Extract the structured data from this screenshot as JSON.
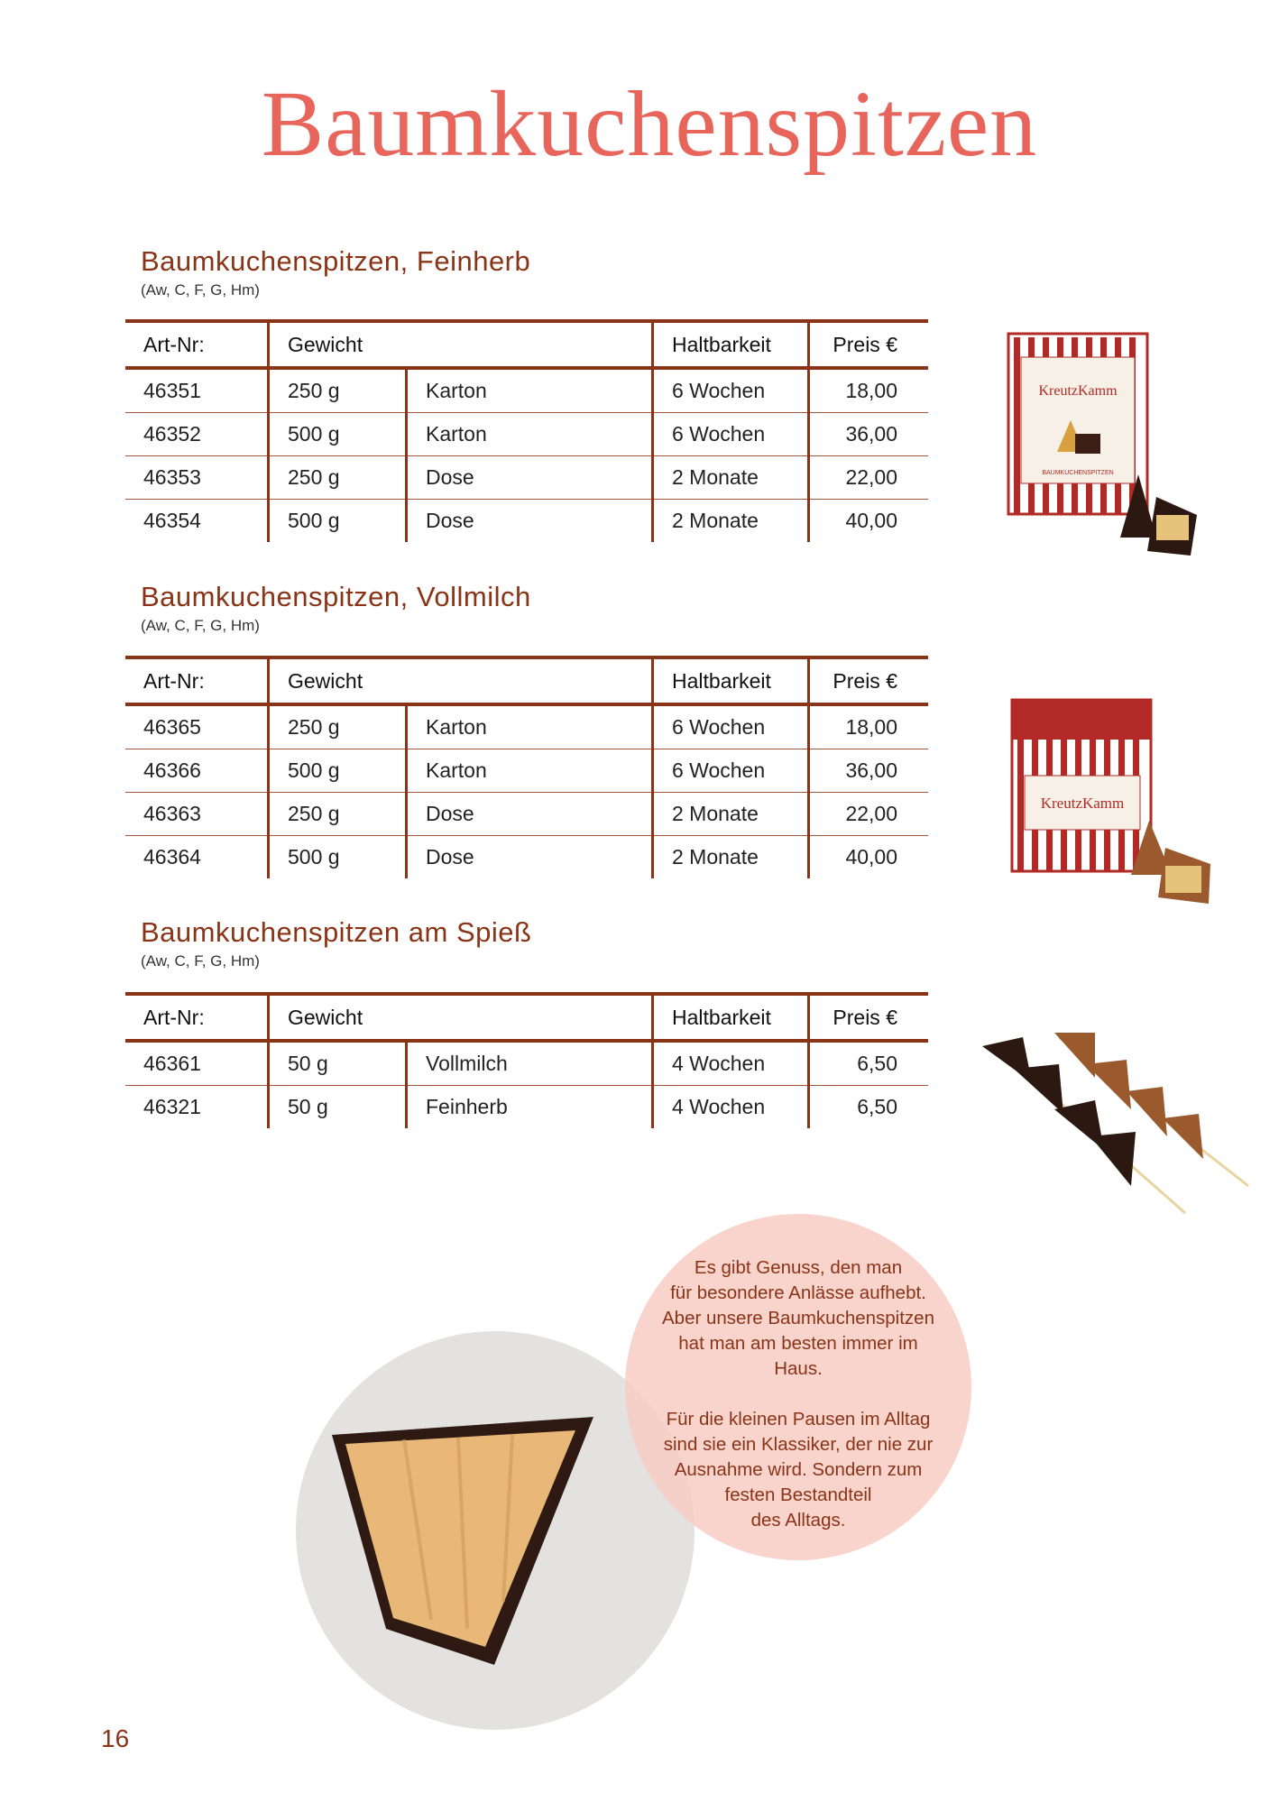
{
  "title": "Baumkuchenspitzen",
  "columns": {
    "artnr": "Art-Nr:",
    "gewicht": "Gewicht",
    "haltbarkeit": "Haltbarkeit",
    "preis": "Preis €"
  },
  "sections": [
    {
      "heading": "Baumkuchenspitzen, Feinherb",
      "allergens": "(Aw, C, F, G, Hm)",
      "rows": [
        {
          "artnr": "46351",
          "weight": "250 g",
          "pack": "Karton",
          "shelf": "6 Wochen",
          "price": "18,00"
        },
        {
          "artnr": "46352",
          "weight": "500 g",
          "pack": "Karton",
          "shelf": "6 Wochen",
          "price": "36,00"
        },
        {
          "artnr": "46353",
          "weight": "250 g",
          "pack": "Dose",
          "shelf": "2 Monate",
          "price": "22,00"
        },
        {
          "artnr": "46354",
          "weight": "500 g",
          "pack": "Dose",
          "shelf": "2 Monate",
          "price": "40,00"
        }
      ]
    },
    {
      "heading": "Baumkuchenspitzen, Vollmilch",
      "allergens": "(Aw, C, F, G, Hm)",
      "rows": [
        {
          "artnr": "46365",
          "weight": "250 g",
          "pack": "Karton",
          "shelf": "6 Wochen",
          "price": "18,00"
        },
        {
          "artnr": "46366",
          "weight": "500 g",
          "pack": "Karton",
          "shelf": "6 Wochen",
          "price": "36,00"
        },
        {
          "artnr": "46363",
          "weight": "250 g",
          "pack": "Dose",
          "shelf": "2 Monate",
          "price": "22,00"
        },
        {
          "artnr": "46364",
          "weight": "500 g",
          "pack": "Dose",
          "shelf": "2 Monate",
          "price": "40,00"
        }
      ]
    },
    {
      "heading": "Baumkuchenspitzen am Spieß",
      "allergens": "(Aw, C, F, G, Hm)",
      "rows": [
        {
          "artnr": "46361",
          "weight": "50 g",
          "pack": "Vollmilch",
          "shelf": "4 Wochen",
          "price": "6,50"
        },
        {
          "artnr": "46321",
          "weight": "50 g",
          "pack": "Feinherb",
          "shelf": "4 Wochen",
          "price": "6,50"
        }
      ]
    }
  ],
  "product_images": {
    "brand_logo": "KreutzKamm",
    "box_label": "BAUMKUCHENSPITZEN"
  },
  "quote": {
    "p1": [
      "Es gibt Genuss, den man",
      "für besondere Anlässe aufhebt.",
      "Aber unsere Baumkuchenspitzen",
      "hat man am besten immer im",
      "Haus."
    ],
    "p2": [
      "Für die kleinen Pausen im Alltag",
      "sind sie ein Klassiker, der nie zur",
      "Ausnahme wird. Sondern zum",
      "festen Bestandteil",
      "des Alltags."
    ]
  },
  "page_number": "16",
  "colors": {
    "title": "#e8655c",
    "accent": "#8a3417",
    "circle": "#f8cdc3"
  }
}
